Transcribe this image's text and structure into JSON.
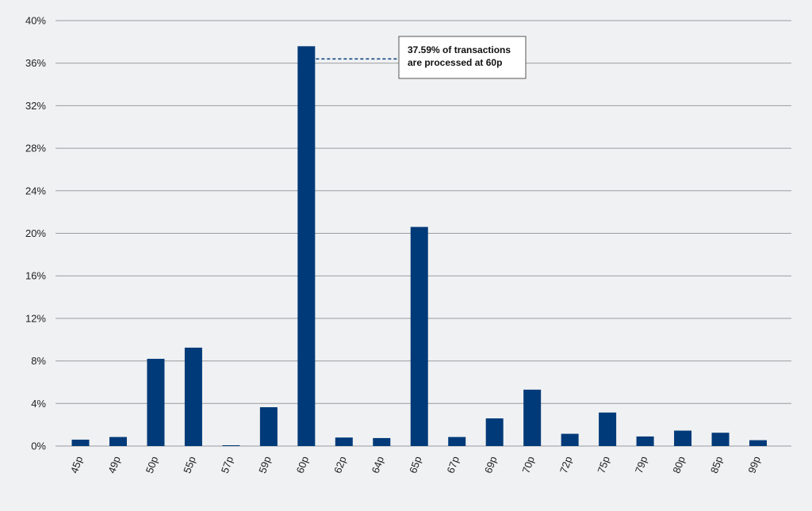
{
  "chart_data": {
    "type": "bar",
    "title": "",
    "xlabel": "",
    "ylabel": "",
    "categories": [
      "45p",
      "49p",
      "50p",
      "55p",
      "57p",
      "59p",
      "60p",
      "62p",
      "64p",
      "65p",
      "67p",
      "69p",
      "70p",
      "72p",
      "75p",
      "79p",
      "80p",
      "85p",
      "99p"
    ],
    "values": [
      0.6,
      0.85,
      8.2,
      9.25,
      0.05,
      3.65,
      37.59,
      0.8,
      0.75,
      20.6,
      0.85,
      2.6,
      5.3,
      1.15,
      3.15,
      0.9,
      1.45,
      1.25,
      0.55
    ],
    "ylim": [
      0,
      40
    ],
    "yticks": [
      "0%",
      "4%",
      "8%",
      "12%",
      "16%",
      "20%",
      "24%",
      "28%",
      "32%",
      "36%",
      "40%"
    ],
    "ytick_values": [
      0,
      4,
      8,
      12,
      16,
      20,
      24,
      28,
      32,
      36,
      40
    ],
    "grid": true,
    "legend": "none",
    "bar_color": "#003a78",
    "annotation": {
      "category": "60p",
      "lines": [
        "37.59% of transactions",
        "are processed at 60p"
      ]
    }
  }
}
